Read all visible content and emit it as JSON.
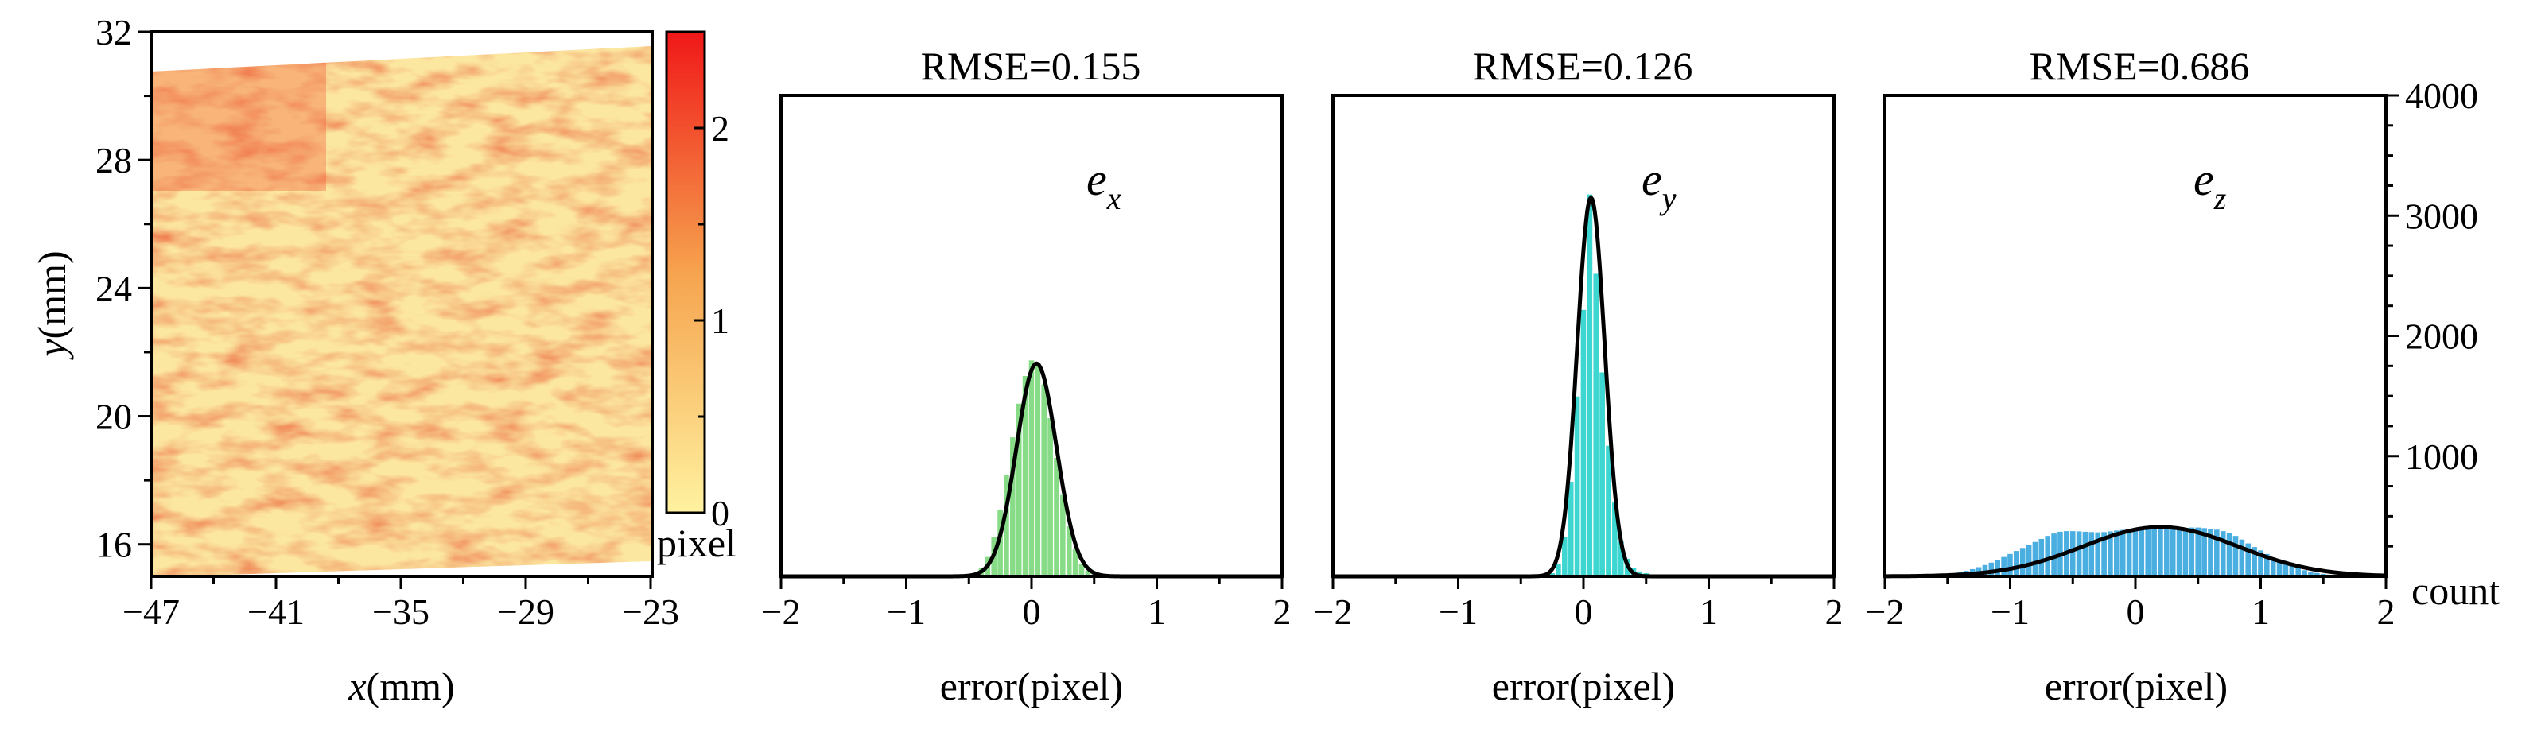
{
  "colors": {
    "colorbar_low": "#fff2a0",
    "colorbar_mid": "#f6a34e",
    "colorbar_high": "#f01818",
    "ex_bars": "#88dc88",
    "ey_bars": "#3ed6d0",
    "ez_bars": "#4aaee0",
    "fit_curve": "#000000"
  },
  "map_panel": {
    "type": "heatmap",
    "xlabel_var": "x",
    "xlabel_unit": "(mm)",
    "ylabel_var": "y",
    "ylabel_unit": "(mm)",
    "xlim": [
      -47,
      -23
    ],
    "ylim": [
      15,
      32
    ],
    "x_ticks": [
      "−47",
      "−41",
      "−35",
      "−29",
      "−23"
    ],
    "y_ticks": [
      "16",
      "20",
      "24",
      "28",
      "32"
    ],
    "colorbar": {
      "ticks": [
        "0",
        "1",
        "2"
      ],
      "range": [
        0,
        2.5
      ],
      "label": "pixel"
    }
  },
  "chart_data": [
    {
      "type": "bar",
      "title": "RMSE=0.155",
      "annotation": {
        "var": "e",
        "sub": "x"
      },
      "xlabel": "error(pixel)",
      "xlim": [
        -2,
        2
      ],
      "ylim": [
        0,
        4000
      ],
      "x_ticks": [
        "−2",
        "−1",
        "0",
        "1",
        "2"
      ],
      "fit": {
        "mean": 0.04,
        "sd": 0.16,
        "peak": 1770
      },
      "bin_width": 0.05,
      "bins_x": [
        -0.5,
        -0.45,
        -0.4,
        -0.35,
        -0.3,
        -0.25,
        -0.2,
        -0.15,
        -0.1,
        -0.05,
        0.0,
        0.05,
        0.1,
        0.15,
        0.2,
        0.25,
        0.3,
        0.35,
        0.4,
        0.45,
        0.5
      ],
      "values": [
        10,
        25,
        70,
        165,
        330,
        560,
        850,
        1160,
        1440,
        1670,
        1800,
        1780,
        1600,
        1320,
        990,
        680,
        420,
        230,
        110,
        50,
        20
      ]
    },
    {
      "type": "bar",
      "title": "RMSE=0.126",
      "annotation": {
        "var": "e",
        "sub": "y"
      },
      "xlabel": "error(pixel)",
      "xlim": [
        -2,
        2
      ],
      "ylim": [
        0,
        4000
      ],
      "x_ticks": [
        "−2",
        "−1",
        "0",
        "1",
        "2"
      ],
      "fit": {
        "mean": 0.06,
        "sd": 0.11,
        "peak": 3150
      },
      "bin_width": 0.05,
      "bins_x": [
        -0.25,
        -0.2,
        -0.15,
        -0.1,
        -0.05,
        0.0,
        0.05,
        0.1,
        0.15,
        0.2,
        0.25,
        0.3,
        0.35,
        0.4,
        0.45,
        0.5,
        0.55
      ],
      "values": [
        30,
        110,
        330,
        790,
        1500,
        2220,
        3180,
        2520,
        1700,
        1090,
        620,
        300,
        150,
        75,
        45,
        30,
        20
      ]
    },
    {
      "type": "bar",
      "title": "RMSE=0.686",
      "annotation": {
        "var": "e",
        "sub": "z"
      },
      "xlabel": "error(pixel)",
      "ylabel": "count",
      "xlim": [
        -2,
        2
      ],
      "ylim": [
        0,
        4000
      ],
      "x_ticks": [
        "−2",
        "−1",
        "0",
        "1",
        "2"
      ],
      "y_ticks": [
        "1000",
        "2000",
        "3000",
        "4000"
      ],
      "fit": {
        "mean": 0.2,
        "sd": 0.62,
        "peak": 410
      },
      "bin_width": 0.05,
      "bins_x": [
        -1.6,
        -1.55,
        -1.5,
        -1.45,
        -1.4,
        -1.35,
        -1.3,
        -1.25,
        -1.2,
        -1.15,
        -1.1,
        -1.05,
        -1.0,
        -0.95,
        -0.9,
        -0.85,
        -0.8,
        -0.75,
        -0.7,
        -0.65,
        -0.6,
        -0.55,
        -0.5,
        -0.45,
        -0.4,
        -0.35,
        -0.3,
        -0.25,
        -0.2,
        -0.15,
        -0.1,
        -0.05,
        0.0,
        0.05,
        0.1,
        0.15,
        0.2,
        0.25,
        0.3,
        0.35,
        0.4,
        0.45,
        0.5,
        0.55,
        0.6,
        0.65,
        0.7,
        0.75,
        0.8,
        0.85,
        0.9,
        0.95,
        1.0,
        1.05,
        1.1,
        1.15,
        1.2,
        1.25,
        1.3,
        1.35,
        1.4,
        1.45,
        1.5,
        1.55,
        1.6
      ],
      "values": [
        10,
        14,
        20,
        28,
        38,
        50,
        64,
        80,
        98,
        118,
        140,
        165,
        190,
        215,
        240,
        265,
        290,
        315,
        340,
        360,
        375,
        380,
        380,
        378,
        375,
        372,
        370,
        372,
        378,
        385,
        390,
        393,
        395,
        398,
        405,
        410,
        410,
        405,
        400,
        400,
        405,
        410,
        410,
        405,
        400,
        392,
        380,
        362,
        340,
        310,
        278,
        248,
        220,
        190,
        160,
        135,
        112,
        90,
        72,
        55,
        42,
        32,
        24,
        18,
        12
      ]
    }
  ]
}
